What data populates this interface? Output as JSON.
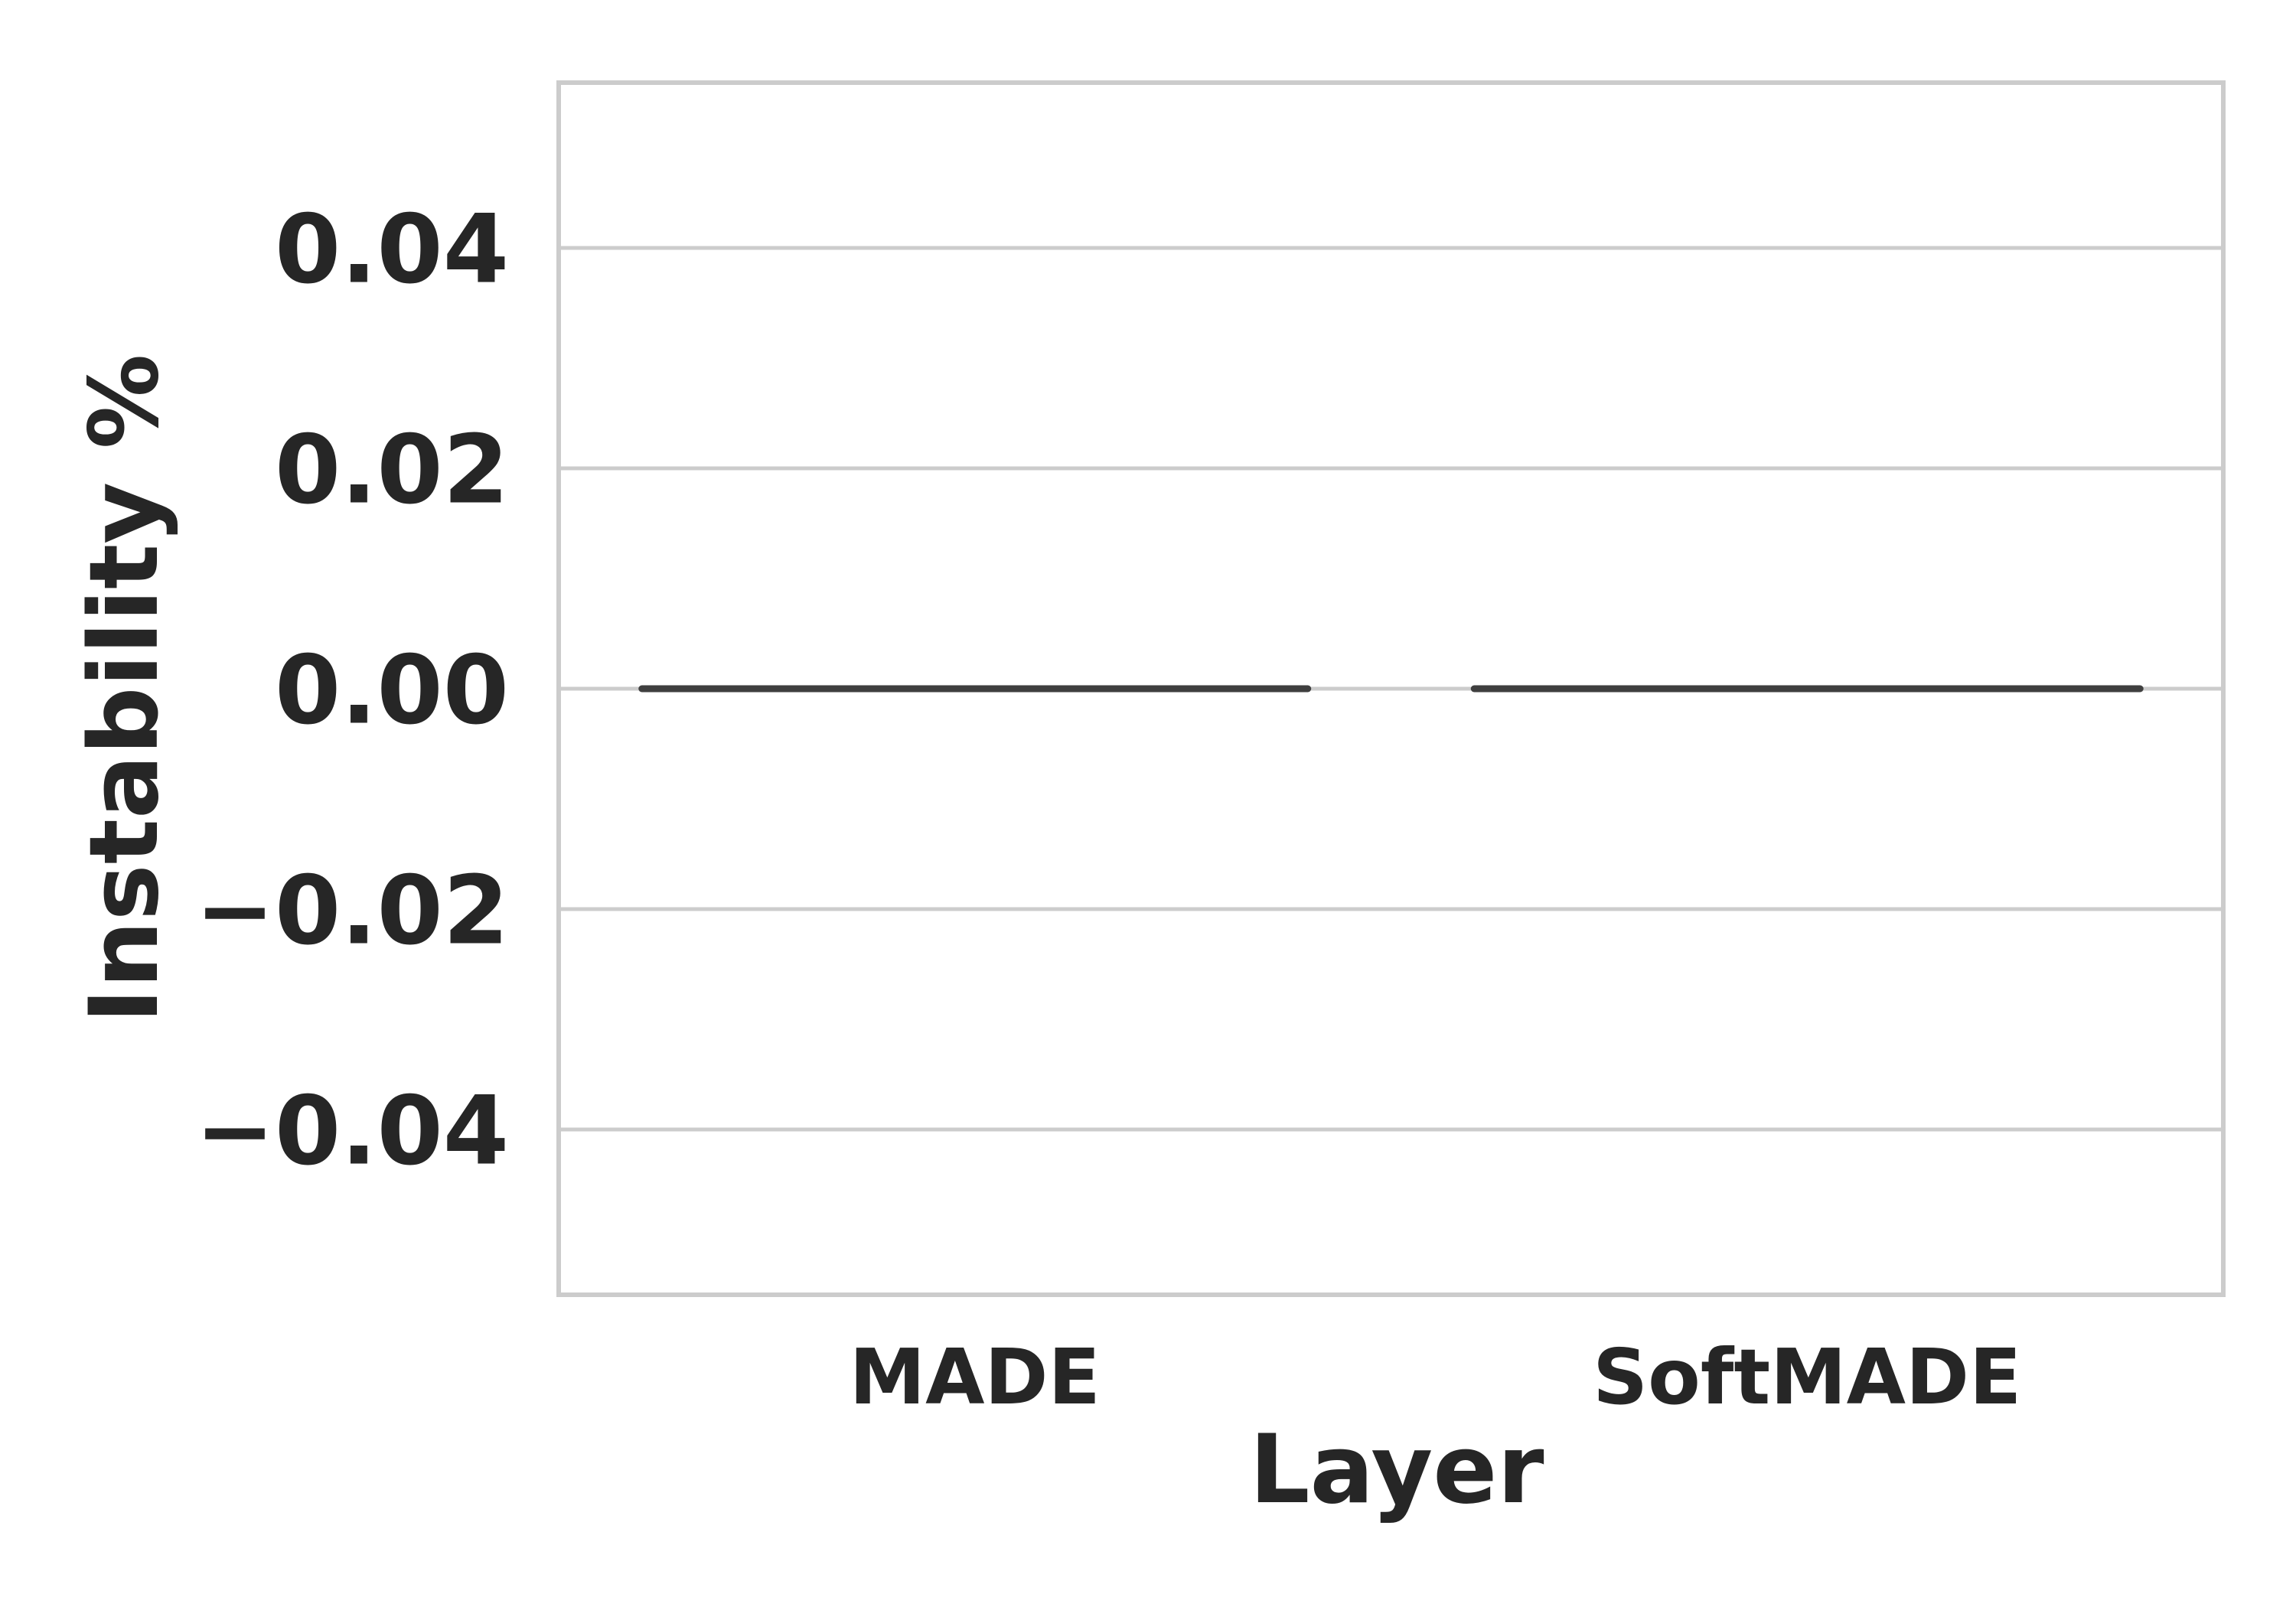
{
  "chart_data": {
    "type": "box",
    "categories": [
      "MADE",
      "SoftMADE"
    ],
    "series": [
      {
        "values": [
          {
            "category": "MADE",
            "min": 0.0,
            "q1": 0.0,
            "median": 0.0,
            "q3": 0.0,
            "max": 0.0
          },
          {
            "category": "SoftMADE",
            "min": 0.0,
            "q1": 0.0,
            "median": 0.0,
            "q3": 0.0,
            "max": 0.0
          }
        ]
      }
    ],
    "xlabel": "Layer",
    "ylabel": "Instability %",
    "ylim": [
      -0.055,
      0.055
    ],
    "yticks": [
      -0.04,
      -0.02,
      0.0,
      0.02,
      0.04
    ],
    "ytick_labels": [
      "−0.04",
      "−0.02",
      "0.00",
      "0.02",
      "0.04"
    ],
    "grid": "horizontal",
    "colors": {
      "grid": "#cccccc",
      "frame": "#cccccc",
      "box_line": "#3f3f3f",
      "text": "#262626"
    }
  }
}
